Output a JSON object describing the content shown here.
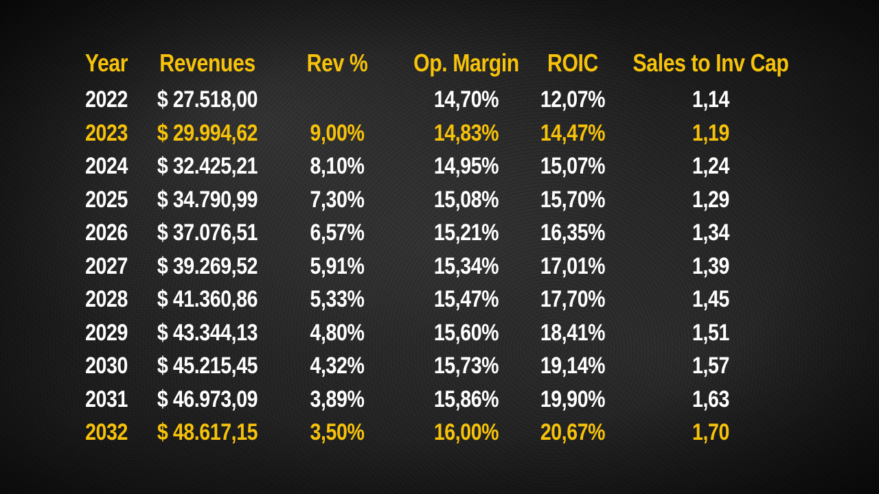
{
  "chart_data": {
    "type": "table",
    "columns": [
      "Year",
      "Revenues",
      "Rev %",
      "Op. Margin",
      "ROIC",
      "Sales to Inv Cap"
    ],
    "rows": [
      {
        "year": "2022",
        "revenues": "$ 27.518,00",
        "rev_pct": "",
        "op_margin": "14,70%",
        "roic": "12,07%",
        "sales_to_inv_cap": "1,14",
        "highlight": false
      },
      {
        "year": "2023",
        "revenues": "$ 29.994,62",
        "rev_pct": "9,00%",
        "op_margin": "14,83%",
        "roic": "14,47%",
        "sales_to_inv_cap": "1,19",
        "highlight": true
      },
      {
        "year": "2024",
        "revenues": "$ 32.425,21",
        "rev_pct": "8,10%",
        "op_margin": "14,95%",
        "roic": "15,07%",
        "sales_to_inv_cap": "1,24",
        "highlight": false
      },
      {
        "year": "2025",
        "revenues": "$ 34.790,99",
        "rev_pct": "7,30%",
        "op_margin": "15,08%",
        "roic": "15,70%",
        "sales_to_inv_cap": "1,29",
        "highlight": false
      },
      {
        "year": "2026",
        "revenues": "$ 37.076,51",
        "rev_pct": "6,57%",
        "op_margin": "15,21%",
        "roic": "16,35%",
        "sales_to_inv_cap": "1,34",
        "highlight": false
      },
      {
        "year": "2027",
        "revenues": "$ 39.269,52",
        "rev_pct": "5,91%",
        "op_margin": "15,34%",
        "roic": "17,01%",
        "sales_to_inv_cap": "1,39",
        "highlight": false
      },
      {
        "year": "2028",
        "revenues": "$ 41.360,86",
        "rev_pct": "5,33%",
        "op_margin": "15,47%",
        "roic": "17,70%",
        "sales_to_inv_cap": "1,45",
        "highlight": false
      },
      {
        "year": "2029",
        "revenues": "$ 43.344,13",
        "rev_pct": "4,80%",
        "op_margin": "15,60%",
        "roic": "18,41%",
        "sales_to_inv_cap": "1,51",
        "highlight": false
      },
      {
        "year": "2030",
        "revenues": "$ 45.215,45",
        "rev_pct": "4,32%",
        "op_margin": "15,73%",
        "roic": "19,14%",
        "sales_to_inv_cap": "1,57",
        "highlight": false
      },
      {
        "year": "2031",
        "revenues": "$ 46.973,09",
        "rev_pct": "3,89%",
        "op_margin": "15,86%",
        "roic": "19,90%",
        "sales_to_inv_cap": "1,63",
        "highlight": false
      },
      {
        "year": "2032",
        "revenues": "$ 48.617,15",
        "rev_pct": "3,50%",
        "op_margin": "16,00%",
        "roic": "20,67%",
        "sales_to_inv_cap": "1,70",
        "highlight": true
      }
    ],
    "colors": {
      "header": "#f6c20a",
      "highlight": "#f6c20a",
      "body": "#ffffff",
      "background": "#1a1a1a"
    }
  }
}
